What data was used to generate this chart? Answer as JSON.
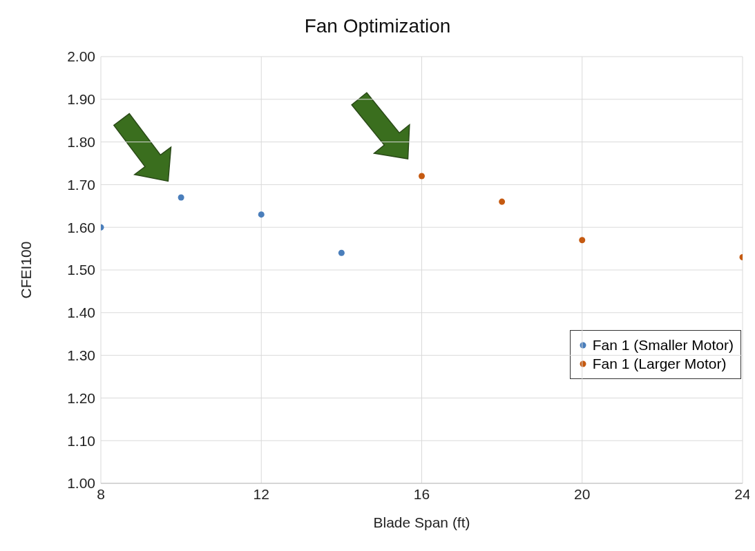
{
  "chart_data": {
    "type": "scatter",
    "title": "Fan Optimization",
    "xlabel": "Blade Span (ft)",
    "ylabel": "CFEI100",
    "series": [
      {
        "name": "Fan 1 (Smaller Motor)",
        "color": "#4a7ebb",
        "x": [
          8,
          10,
          12,
          14
        ],
        "values": [
          1.6,
          1.67,
          1.63,
          1.54
        ]
      },
      {
        "name": "Fan 1 (Larger Motor)",
        "color": "#c55a11",
        "x": [
          16,
          18,
          20,
          24
        ],
        "values": [
          1.72,
          1.66,
          1.57,
          1.53
        ]
      }
    ],
    "xlim": [
      8,
      24
    ],
    "xticks": [
      8,
      12,
      16,
      20,
      24
    ],
    "ylim": [
      1.0,
      2.0
    ],
    "yticks": [
      {
        "value": 1.0,
        "label": "1.00"
      },
      {
        "value": 1.1,
        "label": "1.10"
      },
      {
        "value": 1.2,
        "label": "1.20"
      },
      {
        "value": 1.3,
        "label": "1.30"
      },
      {
        "value": 1.4,
        "label": "1.40"
      },
      {
        "value": 1.5,
        "label": "1.50"
      },
      {
        "value": 1.6,
        "label": "1.60"
      },
      {
        "value": 1.7,
        "label": "1.70"
      },
      {
        "value": 1.8,
        "label": "1.80"
      },
      {
        "value": 1.9,
        "label": "1.90"
      },
      {
        "value": 2.0,
        "label": "2.00"
      }
    ],
    "grid": true,
    "legend": "right",
    "marker": "circle"
  }
}
